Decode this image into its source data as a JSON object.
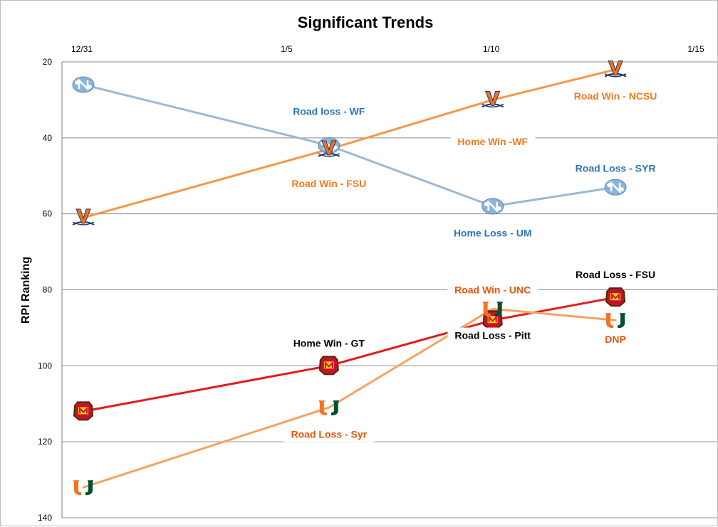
{
  "chart_data": {
    "type": "line",
    "title": "Significant Trends",
    "xlabel": "",
    "ylabel": "RPI Ranking",
    "x_ticks": [
      "12/31",
      "1/5",
      "1/10",
      "1/15"
    ],
    "x_tick_days": [
      0,
      5,
      10,
      15
    ],
    "y_ticks": [
      20,
      40,
      60,
      80,
      100,
      120,
      140
    ],
    "ylim": [
      20,
      140
    ],
    "y_inverted": true,
    "grid": "horizontal",
    "series": [
      {
        "team": "UNC",
        "color": "#9bb8d6",
        "marker_icon": "unc-logo-icon",
        "points": [
          {
            "x": "12/31",
            "y": 26
          },
          {
            "x": "1/6",
            "y": 42
          },
          {
            "x": "1/10",
            "y": 58
          },
          {
            "x": "1/13",
            "y": 53
          }
        ]
      },
      {
        "team": "UVA",
        "color": "#f79646",
        "marker_icon": "uva-logo-icon",
        "points": [
          {
            "x": "12/31",
            "y": 61
          },
          {
            "x": "1/6",
            "y": 43
          },
          {
            "x": "1/10",
            "y": 30
          },
          {
            "x": "1/13",
            "y": 22
          }
        ]
      },
      {
        "team": "Maryland",
        "color": "#e31a1c",
        "marker_icon": "maryland-logo-icon",
        "points": [
          {
            "x": "12/31",
            "y": 112
          },
          {
            "x": "1/6",
            "y": 100
          },
          {
            "x": "1/10",
            "y": 88
          },
          {
            "x": "1/13",
            "y": 82
          }
        ]
      },
      {
        "team": "Miami",
        "color": "#f4a460",
        "marker_icon": "miami-logo-icon",
        "points": [
          {
            "x": "12/31",
            "y": 132
          },
          {
            "x": "1/6",
            "y": 111
          },
          {
            "x": "1/10",
            "y": 85
          },
          {
            "x": "1/13",
            "y": 88
          }
        ]
      }
    ],
    "annotations": [
      {
        "text": "Road loss - WF",
        "color": "#2e75b6",
        "at": {
          "x": "1/6",
          "y": 33
        }
      },
      {
        "text": "Road Win - FSU",
        "color": "#f07b1d",
        "at": {
          "x": "1/6",
          "y": 52
        }
      },
      {
        "text": "Home Win -WF",
        "color": "#f07b1d",
        "at": {
          "x": "1/10",
          "y": 41
        }
      },
      {
        "text": "Road Win - NCSU",
        "color": "#f07b1d",
        "at": {
          "x": "1/13",
          "y": 29
        }
      },
      {
        "text": "Home Loss - UM",
        "color": "#2e75b6",
        "at": {
          "x": "1/10",
          "y": 65
        }
      },
      {
        "text": "Road Loss - SYR",
        "color": "#2e75b6",
        "at": {
          "x": "1/13",
          "y": 48
        }
      },
      {
        "text": "Road Win - UNC",
        "color": "#e8550c",
        "at": {
          "x": "1/10",
          "y": 80
        }
      },
      {
        "text": "Road Loss - FSU",
        "color": "#000000",
        "at": {
          "x": "1/13",
          "y": 76
        }
      },
      {
        "text": "DNP",
        "color": "#e8550c",
        "at": {
          "x": "1/13",
          "y": 93
        }
      },
      {
        "text": "Home Win - GT",
        "color": "#000000",
        "at": {
          "x": "1/6",
          "y": 94
        }
      },
      {
        "text": "Road Loss - Pitt",
        "color": "#000000",
        "at": {
          "x": "1/10",
          "y": 92
        }
      },
      {
        "text": "Road Loss - Syr",
        "color": "#e8550c",
        "at": {
          "x": "1/6",
          "y": 118
        }
      }
    ]
  }
}
